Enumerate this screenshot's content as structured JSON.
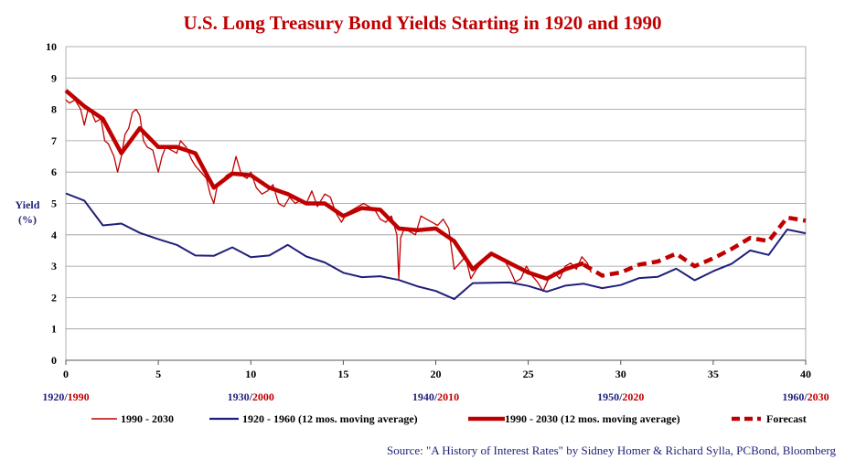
{
  "chart_data": {
    "type": "line",
    "title": "U.S. Long Treasury Bond Yields Starting in 1920 and 1990",
    "ylabel_line1": "Yield",
    "ylabel_line2": "(%)",
    "xlim": [
      0,
      40
    ],
    "ylim": [
      0,
      10
    ],
    "xticks": [
      0,
      5,
      10,
      15,
      20,
      25,
      30,
      35,
      40
    ],
    "yticks": [
      0,
      1,
      2,
      3,
      4,
      5,
      6,
      7,
      8,
      9,
      10
    ],
    "grid": "horizontal",
    "decade_labels": [
      {
        "x": 0,
        "first": "1920/",
        "second": "1990"
      },
      {
        "x": 10,
        "first": "1930/",
        "second": "2000"
      },
      {
        "x": 20,
        "first": "1940/",
        "second": "2010"
      },
      {
        "x": 30,
        "first": "1950/",
        "second": "2020"
      },
      {
        "x": 40,
        "first": "1960/",
        "second": "2030"
      }
    ],
    "colors": {
      "red": "#c00000",
      "navy": "#1f1f7a",
      "grid": "#9a9a9a",
      "title": "#c00000"
    },
    "series": [
      {
        "name": "1990 - 2030",
        "style": "thin-red",
        "x": [
          0,
          0.2,
          0.5,
          0.8,
          1.0,
          1.2,
          1.4,
          1.6,
          1.9,
          2.1,
          2.3,
          2.6,
          2.8,
          3.0,
          3.2,
          3.4,
          3.6,
          3.8,
          4.0,
          4.2,
          4.4,
          4.7,
          5.0,
          5.2,
          5.4,
          5.7,
          6.0,
          6.2,
          6.5,
          6.8,
          7.0,
          7.3,
          7.6,
          7.8,
          8.0,
          8.2,
          8.4,
          8.7,
          9.0,
          9.2,
          9.5,
          9.8,
          10.0,
          10.3,
          10.6,
          10.9,
          11.2,
          11.5,
          11.8,
          12.1,
          12.4,
          12.7,
          13.0,
          13.3,
          13.6,
          14.0,
          14.3,
          14.6,
          14.9,
          15.2,
          15.5,
          15.8,
          16.1,
          16.4,
          16.7,
          17.0,
          17.3,
          17.6,
          17.9,
          18.0,
          18.1,
          18.3,
          18.6,
          18.9,
          19.2,
          19.5,
          19.8,
          20.1,
          20.4,
          20.7,
          21.0,
          21.3,
          21.6,
          21.9,
          22.2,
          22.5,
          22.8,
          23.1,
          23.4,
          23.7,
          24.0,
          24.3,
          24.6,
          24.9,
          25.2,
          25.5,
          25.8,
          26.1,
          26.4,
          26.7,
          27.0,
          27.3,
          27.6,
          27.9,
          28.2,
          28.4
        ],
        "y": [
          8.3,
          8.2,
          8.3,
          8.0,
          7.5,
          8.0,
          7.9,
          7.6,
          7.7,
          7.0,
          6.9,
          6.5,
          6.0,
          6.5,
          7.2,
          7.4,
          7.9,
          8.0,
          7.8,
          7.0,
          6.8,
          6.7,
          6.0,
          6.5,
          6.8,
          6.7,
          6.6,
          7.0,
          6.8,
          6.4,
          6.2,
          6.0,
          5.8,
          5.3,
          5.0,
          5.6,
          5.7,
          5.9,
          6.0,
          6.5,
          5.9,
          5.8,
          6.0,
          5.5,
          5.3,
          5.4,
          5.6,
          5.0,
          4.9,
          5.2,
          5.0,
          5.1,
          5.0,
          5.4,
          4.9,
          5.3,
          5.2,
          4.7,
          4.4,
          4.7,
          4.8,
          4.9,
          5.0,
          4.9,
          4.8,
          4.5,
          4.4,
          4.6,
          4.0,
          2.6,
          3.9,
          4.2,
          4.1,
          4.0,
          4.6,
          4.5,
          4.4,
          4.3,
          4.5,
          4.2,
          2.9,
          3.1,
          3.3,
          2.6,
          2.9,
          3.1,
          3.3,
          3.4,
          3.3,
          3.2,
          2.9,
          2.5,
          2.6,
          3.0,
          2.7,
          2.5,
          2.2,
          2.6,
          2.8,
          2.6,
          3.0,
          3.1,
          2.9,
          3.3,
          3.1,
          2.8
        ]
      },
      {
        "name": "1920 - 1960 (12 mos. moving average)",
        "style": "navy",
        "x": [
          0,
          1,
          2,
          3,
          4,
          5,
          6,
          7,
          8,
          9,
          10,
          11,
          12,
          13,
          14,
          15,
          16,
          17,
          18,
          19,
          20,
          21,
          22,
          23,
          24,
          25,
          26,
          27,
          28,
          29,
          30,
          31,
          32,
          33,
          34,
          35,
          36,
          37,
          38,
          39,
          40
        ],
        "y": [
          5.32,
          5.09,
          4.3,
          4.36,
          4.06,
          3.86,
          3.68,
          3.34,
          3.33,
          3.6,
          3.29,
          3.34,
          3.68,
          3.31,
          3.12,
          2.79,
          2.65,
          2.68,
          2.56,
          2.36,
          2.21,
          1.95,
          2.46,
          2.47,
          2.48,
          2.37,
          2.19,
          2.38,
          2.44,
          2.3,
          2.4,
          2.62,
          2.66,
          2.92,
          2.55,
          2.84,
          3.08,
          3.5,
          3.36,
          4.17,
          4.05
        ]
      },
      {
        "name": "1990 - 2030 (12 mos. moving average)",
        "style": "thick-red",
        "x": [
          0,
          1,
          2,
          3,
          4,
          5,
          6,
          7,
          8,
          9,
          10,
          11,
          12,
          13,
          14,
          15,
          16,
          17,
          18,
          19,
          20,
          21,
          22,
          23,
          24,
          25,
          26,
          27,
          28
        ],
        "y": [
          8.6,
          8.1,
          7.7,
          6.6,
          7.4,
          6.8,
          6.8,
          6.6,
          5.5,
          5.95,
          5.9,
          5.5,
          5.3,
          5.0,
          5.0,
          4.6,
          4.85,
          4.8,
          4.2,
          4.15,
          4.2,
          3.8,
          2.9,
          3.4,
          3.1,
          2.8,
          2.6,
          2.9,
          3.1
        ]
      },
      {
        "name": "Forecast",
        "style": "dashed-red",
        "x": [
          28,
          29,
          30,
          31,
          32,
          33,
          34,
          35,
          36,
          37,
          38,
          39,
          40
        ],
        "y": [
          3.05,
          2.7,
          2.8,
          3.05,
          3.15,
          3.4,
          3.0,
          3.25,
          3.55,
          3.9,
          3.8,
          4.55,
          4.45
        ]
      }
    ]
  },
  "source_text": "Source: \"A History of Interest Rates\" by Sidney Homer & Richard Sylla, PCBond, Bloomberg"
}
